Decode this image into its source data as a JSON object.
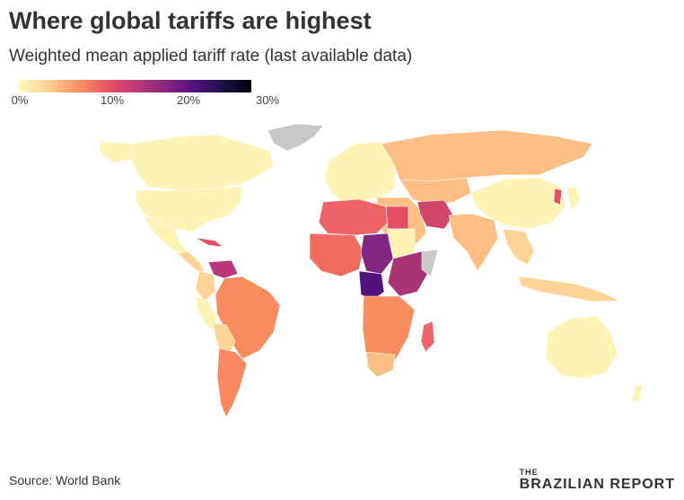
{
  "title": "Where global tariffs are highest",
  "subtitle": "Weighted mean applied tariff rate (last available data)",
  "legend": {
    "ticks": [
      "0%",
      "10%",
      "20%",
      "30%"
    ],
    "tick_values": [
      0,
      10,
      20,
      30
    ],
    "range": [
      0,
      30
    ],
    "colors": [
      "#fcfdbf",
      "#fed395",
      "#fb8761",
      "#e34e65",
      "#b73779",
      "#832681",
      "#51127c",
      "#1d1147",
      "#000004"
    ]
  },
  "no_data_color": "#c8c8c8",
  "source": "Source: World Bank",
  "brand": {
    "the": "THE",
    "name": "BRAZILIAN REPORT"
  }
}
